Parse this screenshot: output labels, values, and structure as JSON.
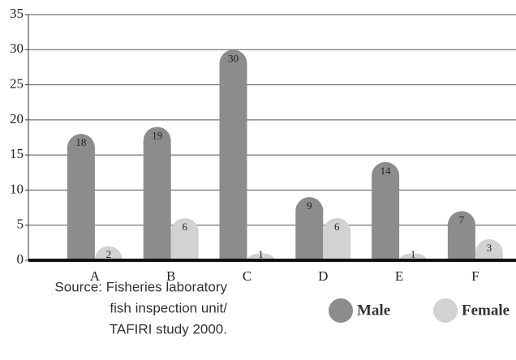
{
  "chart_data": {
    "type": "bar",
    "categories": [
      "A",
      "B",
      "C",
      "D",
      "E",
      "F"
    ],
    "series": [
      {
        "name": "Male",
        "color": "#8c8c8c",
        "values": [
          18,
          19,
          30,
          9,
          14,
          7
        ]
      },
      {
        "name": "Female",
        "color": "#d2d2d2",
        "values": [
          2,
          6,
          1,
          6,
          1,
          3
        ]
      }
    ],
    "ylim": [
      0,
      35
    ],
    "yticks": [
      0,
      5,
      10,
      15,
      20,
      25,
      30,
      35
    ],
    "grid": true,
    "legend": "bottom-right",
    "source": [
      "Source: Fisheries laboratory",
      "fish inspection unit/",
      "TAFIRI study 2000."
    ]
  }
}
